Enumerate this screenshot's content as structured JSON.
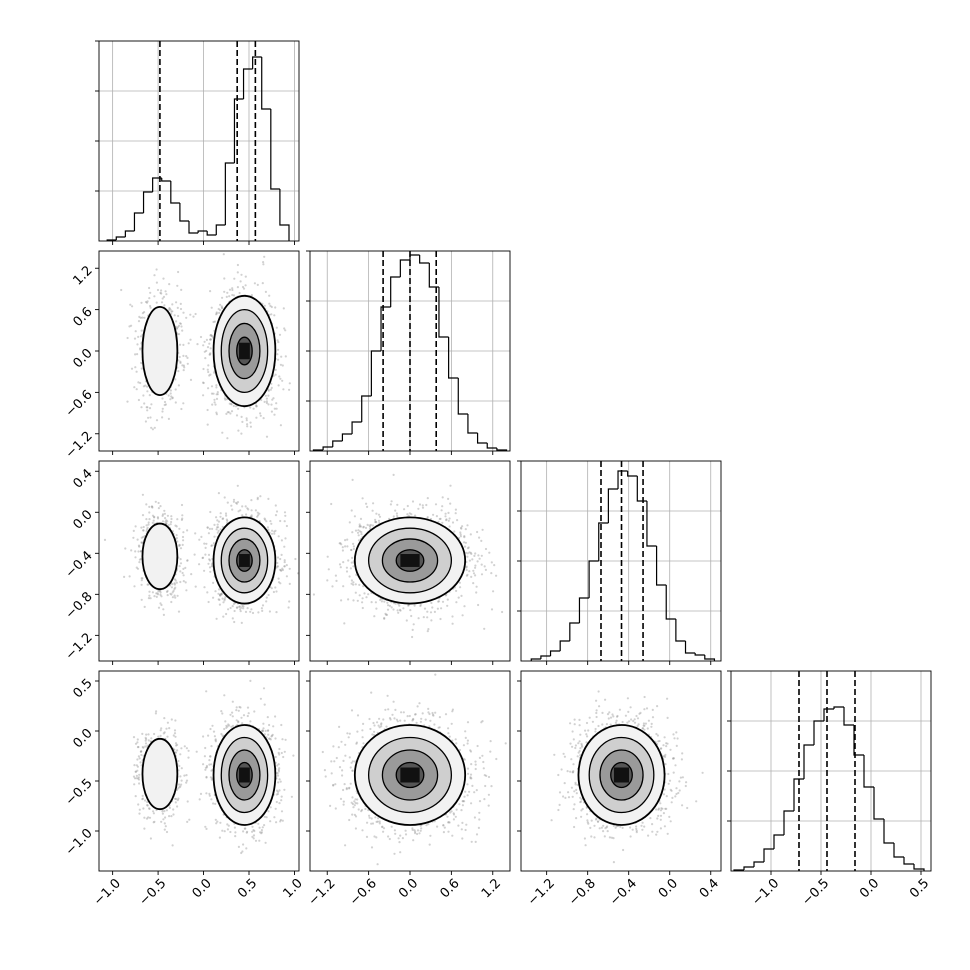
{
  "chart_data": {
    "type": "corner",
    "title": "",
    "parameters": [
      "",
      "",
      "",
      ""
    ],
    "axes": {
      "p0": {
        "range": [
          -1.15,
          1.05
        ],
        "ticks": [
          -1.0,
          -0.5,
          0.0,
          0.5,
          1.0
        ],
        "tick_labels": [
          "−1.0",
          "−0.5",
          "0.0",
          "0.5",
          "1.0"
        ]
      },
      "p1": {
        "range": [
          -1.45,
          1.45
        ],
        "ticks": [
          -1.2,
          -0.6,
          0.0,
          0.6,
          1.2
        ],
        "tick_labels": [
          "−1.2",
          "−0.6",
          "0.0",
          "0.6",
          "1.2"
        ]
      },
      "p2": {
        "range": [
          -1.45,
          0.5
        ],
        "ticks": [
          -1.2,
          -0.8,
          -0.4,
          0.0,
          0.4
        ],
        "tick_labels": [
          "−1.2",
          "−0.8",
          "−0.4",
          "0.0",
          "0.4"
        ]
      },
      "p3": {
        "range": [
          -1.4,
          0.6
        ],
        "ticks": [
          -1.0,
          -0.5,
          0.0,
          0.5
        ],
        "tick_labels": [
          "−1.0",
          "−0.5",
          "0.0",
          "0.5"
        ]
      }
    },
    "marginals": [
      {
        "param": "p0",
        "quantiles": [
          -0.48,
          0.37,
          0.57
        ],
        "bin_edges": [
          -1.06,
          -0.96,
          -0.86,
          -0.76,
          -0.66,
          -0.56,
          -0.46,
          -0.36,
          -0.26,
          -0.16,
          -0.06,
          0.04,
          0.14,
          0.24,
          0.34,
          0.44,
          0.54,
          0.64,
          0.74,
          0.84,
          0.94
        ],
        "counts": [
          0.005,
          0.02,
          0.05,
          0.14,
          0.245,
          0.315,
          0.3,
          0.19,
          0.1,
          0.04,
          0.05,
          0.03,
          0.08,
          0.39,
          0.71,
          0.86,
          0.92,
          0.66,
          0.26,
          0.08
        ]
      },
      {
        "param": "p1",
        "quantiles": [
          -0.39,
          0.0,
          0.38
        ],
        "bin_edges": [
          -1.4,
          -1.26,
          -1.12,
          -0.98,
          -0.84,
          -0.7,
          -0.56,
          -0.42,
          -0.28,
          -0.14,
          0.0,
          0.14,
          0.28,
          0.42,
          0.56,
          0.7,
          0.84,
          0.98,
          1.12,
          1.26,
          1.4
        ],
        "counts": [
          0.005,
          0.02,
          0.05,
          0.085,
          0.145,
          0.275,
          0.5,
          0.72,
          0.87,
          0.955,
          0.98,
          0.94,
          0.82,
          0.57,
          0.365,
          0.185,
          0.09,
          0.04,
          0.015,
          0.005
        ]
      },
      {
        "param": "p2",
        "quantiles": [
          -0.67,
          -0.47,
          -0.26
        ],
        "bin_edges": [
          -1.35,
          -1.256,
          -1.162,
          -1.068,
          -0.974,
          -0.88,
          -0.786,
          -0.692,
          -0.598,
          -0.504,
          -0.41,
          -0.316,
          -0.222,
          -0.128,
          -0.034,
          0.06,
          0.154,
          0.248,
          0.342,
          0.436
        ],
        "counts": [
          0.01,
          0.025,
          0.05,
          0.1,
          0.19,
          0.315,
          0.5,
          0.69,
          0.86,
          0.95,
          0.925,
          0.8,
          0.575,
          0.38,
          0.21,
          0.1,
          0.04,
          0.03,
          0.01
        ]
      },
      {
        "param": "p3",
        "quantiles": [
          -0.72,
          -0.44,
          -0.16
        ],
        "bin_edges": [
          -1.37,
          -1.27,
          -1.17,
          -1.07,
          -0.97,
          -0.87,
          -0.77,
          -0.67,
          -0.57,
          -0.47,
          -0.37,
          -0.27,
          -0.17,
          -0.07,
          0.03,
          0.13,
          0.23,
          0.33,
          0.43,
          0.53
        ],
        "counts": [
          0.005,
          0.02,
          0.045,
          0.11,
          0.18,
          0.3,
          0.46,
          0.63,
          0.75,
          0.81,
          0.82,
          0.73,
          0.58,
          0.42,
          0.26,
          0.14,
          0.07,
          0.035,
          0.01
        ]
      }
    ],
    "pairs": [
      {
        "x": "p0",
        "y": "p1",
        "modes": [
          {
            "cx": -0.48,
            "cy": 0.0,
            "sx": 0.12,
            "sy": 0.4,
            "w": 0.3
          },
          {
            "cx": 0.45,
            "cy": 0.0,
            "sx": 0.17,
            "sy": 0.4,
            "w": 0.7
          }
        ]
      },
      {
        "x": "p0",
        "y": "p2",
        "modes": [
          {
            "cx": -0.48,
            "cy": -0.43,
            "sx": 0.12,
            "sy": 0.2,
            "w": 0.3
          },
          {
            "cx": 0.45,
            "cy": -0.47,
            "sx": 0.17,
            "sy": 0.21,
            "w": 0.7
          }
        ]
      },
      {
        "x": "p0",
        "y": "p3",
        "modes": [
          {
            "cx": -0.48,
            "cy": -0.43,
            "sx": 0.12,
            "sy": 0.22,
            "w": 0.3
          },
          {
            "cx": 0.45,
            "cy": -0.44,
            "sx": 0.17,
            "sy": 0.25,
            "w": 0.7
          }
        ]
      },
      {
        "x": "p1",
        "y": "p2",
        "modes": [
          {
            "cx": 0.0,
            "cy": -0.47,
            "sx": 0.4,
            "sy": 0.21,
            "w": 1.0
          }
        ]
      },
      {
        "x": "p1",
        "y": "p3",
        "modes": [
          {
            "cx": 0.0,
            "cy": -0.44,
            "sx": 0.4,
            "sy": 0.25,
            "w": 1.0
          }
        ]
      },
      {
        "x": "p2",
        "y": "p3",
        "modes": [
          {
            "cx": -0.47,
            "cy": -0.44,
            "sx": 0.21,
            "sy": 0.25,
            "w": 1.0
          }
        ]
      }
    ],
    "grid": true,
    "legend": "none"
  }
}
